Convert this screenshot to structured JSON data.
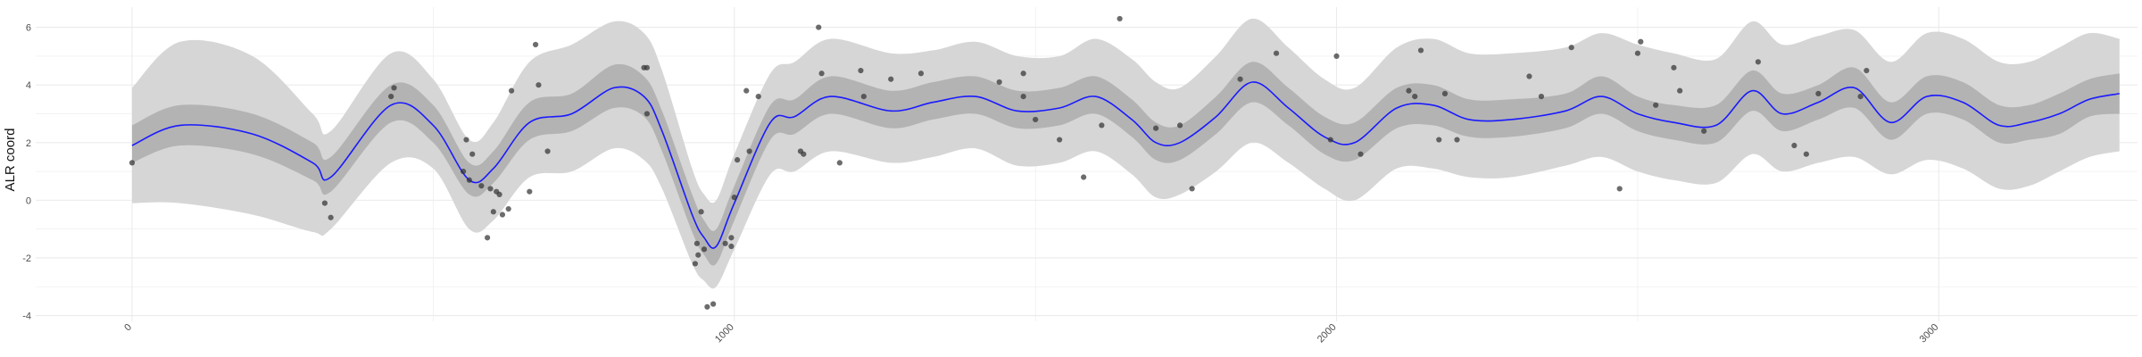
{
  "chart_data": {
    "type": "line",
    "title": "",
    "xlabel": "",
    "ylabel": "ALR coord",
    "xlim": [
      -160,
      3330
    ],
    "ylim": [
      -4.2,
      6.7
    ],
    "x_ticks": [
      0,
      1000,
      2000,
      3000
    ],
    "x_tick_labels": [
      "0",
      "1000",
      "2000",
      "3000"
    ],
    "y_ticks": [
      -4,
      -2,
      0,
      2,
      4,
      6
    ],
    "y_tick_labels": [
      "-4",
      "-2",
      "0",
      "2",
      "4",
      "6"
    ],
    "grid": true,
    "colors": {
      "mean_line": "#1a1aff",
      "inner_band": "#b3b3b3",
      "outer_band": "#d6d6d6",
      "points": "#333333",
      "grid": "#ebebeb"
    },
    "series": [
      {
        "kind": "mean",
        "x": [
          0,
          80,
          200,
          300,
          330,
          430,
          500,
          560,
          600,
          660,
          730,
          800,
          850,
          880,
          930,
          950,
          970,
          1000,
          1060,
          1100,
          1160,
          1260,
          1330,
          1400,
          1470,
          1540,
          1600,
          1660,
          1700,
          1740,
          1800,
          1860,
          1920,
          1980,
          2030,
          2100,
          2160,
          2220,
          2290,
          2380,
          2440,
          2500,
          2560,
          2630,
          2690,
          2740,
          2800,
          2860,
          2920,
          2980,
          3040,
          3100,
          3150,
          3200,
          3250,
          3300
        ],
        "y": [
          1.9,
          2.6,
          2.3,
          1.3,
          0.8,
          3.3,
          2.6,
          0.7,
          1.1,
          2.7,
          3.0,
          3.9,
          3.6,
          2.4,
          -0.5,
          -1.3,
          -1.6,
          -0.1,
          2.7,
          2.9,
          3.6,
          3.1,
          3.4,
          3.6,
          3.1,
          3.2,
          3.6,
          2.8,
          2.0,
          2.0,
          2.9,
          4.1,
          3.2,
          2.2,
          2.0,
          3.2,
          3.3,
          2.8,
          2.8,
          3.1,
          3.6,
          3.0,
          2.7,
          2.6,
          3.8,
          3.0,
          3.4,
          3.9,
          2.7,
          3.6,
          3.4,
          2.6,
          2.7,
          3.0,
          3.5,
          3.7
        ]
      },
      {
        "kind": "inner-band",
        "x": [
          0,
          80,
          200,
          300,
          330,
          430,
          500,
          560,
          600,
          660,
          730,
          800,
          850,
          880,
          930,
          950,
          970,
          1000,
          1060,
          1100,
          1160,
          1260,
          1330,
          1400,
          1470,
          1540,
          1600,
          1660,
          1700,
          1740,
          1800,
          1860,
          1920,
          1980,
          2030,
          2100,
          2160,
          2220,
          2290,
          2380,
          2440,
          2500,
          2560,
          2630,
          2690,
          2740,
          2800,
          2860,
          2920,
          2980,
          3040,
          3100,
          3150,
          3200,
          3250,
          3300
        ],
        "lower": [
          1.3,
          1.9,
          1.6,
          0.7,
          0.3,
          2.7,
          2.0,
          0.2,
          0.6,
          2.1,
          2.4,
          3.2,
          2.9,
          1.7,
          -1.1,
          -1.9,
          -2.2,
          -0.7,
          2.1,
          2.3,
          3.0,
          2.5,
          2.8,
          3.0,
          2.5,
          2.6,
          3.0,
          2.2,
          1.4,
          1.4,
          2.3,
          3.4,
          2.6,
          1.6,
          1.4,
          2.5,
          2.6,
          2.2,
          2.2,
          2.5,
          3.0,
          2.4,
          2.1,
          2.0,
          3.1,
          2.4,
          2.8,
          3.2,
          2.1,
          3.0,
          2.8,
          2.0,
          2.1,
          2.3,
          2.9,
          3.0
        ],
        "upper": [
          2.6,
          3.3,
          3.0,
          2.0,
          1.5,
          4.0,
          3.3,
          1.3,
          1.7,
          3.4,
          3.7,
          4.7,
          4.3,
          3.1,
          0.2,
          -0.7,
          -1.0,
          0.5,
          3.3,
          3.5,
          4.3,
          3.8,
          4.1,
          4.3,
          3.8,
          3.9,
          4.3,
          3.5,
          2.7,
          2.6,
          3.6,
          4.8,
          3.9,
          2.9,
          2.7,
          3.9,
          4.0,
          3.5,
          3.5,
          3.7,
          4.3,
          3.6,
          3.3,
          3.3,
          4.5,
          3.7,
          4.0,
          4.6,
          3.4,
          4.3,
          4.1,
          3.3,
          3.3,
          3.7,
          4.2,
          4.4
        ]
      },
      {
        "kind": "outer-band",
        "x": [
          0,
          80,
          200,
          300,
          330,
          430,
          500,
          560,
          600,
          660,
          730,
          800,
          850,
          880,
          930,
          950,
          970,
          1000,
          1060,
          1100,
          1160,
          1260,
          1330,
          1400,
          1470,
          1540,
          1600,
          1660,
          1700,
          1740,
          1800,
          1860,
          1920,
          1980,
          2030,
          2100,
          2160,
          2220,
          2290,
          2380,
          2440,
          2500,
          2560,
          2630,
          2690,
          2740,
          2800,
          2860,
          2920,
          2980,
          3040,
          3100,
          3150,
          3200,
          3250,
          3300
        ],
        "lower": [
          -0.1,
          -0.1,
          -0.5,
          -1.1,
          -1.0,
          1.3,
          1.1,
          -1.0,
          -0.7,
          0.8,
          1.0,
          1.8,
          1.4,
          0.4,
          -2.2,
          -2.8,
          -3.0,
          -1.7,
          0.9,
          1.0,
          1.7,
          1.3,
          1.5,
          1.8,
          1.2,
          1.3,
          1.7,
          0.9,
          0.1,
          0.2,
          1.0,
          2.0,
          1.3,
          0.4,
          0.0,
          1.1,
          1.1,
          0.8,
          0.8,
          1.2,
          1.5,
          1.0,
          0.7,
          0.6,
          1.6,
          1.0,
          1.3,
          1.5,
          0.9,
          1.4,
          1.1,
          0.4,
          0.5,
          1.0,
          1.5,
          1.7
        ],
        "upper": [
          3.9,
          5.5,
          5.0,
          3.0,
          2.4,
          5.1,
          4.2,
          2.1,
          2.7,
          4.8,
          5.4,
          6.2,
          5.8,
          4.5,
          1.1,
          0.2,
          0.0,
          1.6,
          4.4,
          4.8,
          5.6,
          5.1,
          5.2,
          5.5,
          5.0,
          5.0,
          5.6,
          4.9,
          4.1,
          3.9,
          5.0,
          6.3,
          5.3,
          4.2,
          3.9,
          5.3,
          5.6,
          5.1,
          5.1,
          5.3,
          5.8,
          5.4,
          5.1,
          4.9,
          6.2,
          5.4,
          5.7,
          5.9,
          4.8,
          5.8,
          5.6,
          4.8,
          4.8,
          5.3,
          5.8,
          5.6
        ]
      },
      {
        "kind": "observations",
        "points": [
          [
            0,
            1.3
          ],
          [
            320,
            -0.1
          ],
          [
            330,
            -0.6
          ],
          [
            430,
            3.6
          ],
          [
            435,
            3.9
          ],
          [
            550,
            1.0
          ],
          [
            555,
            2.1
          ],
          [
            560,
            0.7
          ],
          [
            565,
            1.6
          ],
          [
            580,
            0.5
          ],
          [
            590,
            -1.3
          ],
          [
            595,
            0.4
          ],
          [
            600,
            -0.4
          ],
          [
            605,
            0.3
          ],
          [
            610,
            0.2
          ],
          [
            615,
            -0.5
          ],
          [
            625,
            -0.3
          ],
          [
            630,
            3.8
          ],
          [
            660,
            0.3
          ],
          [
            670,
            5.4
          ],
          [
            675,
            4.0
          ],
          [
            690,
            1.7
          ],
          [
            850,
            4.6
          ],
          [
            855,
            4.6
          ],
          [
            855,
            3.0
          ],
          [
            935,
            -2.2
          ],
          [
            938,
            -1.5
          ],
          [
            940,
            -1.9
          ],
          [
            945,
            -0.4
          ],
          [
            950,
            -1.7
          ],
          [
            955,
            -3.7
          ],
          [
            965,
            -3.6
          ],
          [
            985,
            -1.5
          ],
          [
            995,
            -1.6
          ],
          [
            995,
            -1.3
          ],
          [
            1000,
            0.1
          ],
          [
            1005,
            1.4
          ],
          [
            1020,
            3.8
          ],
          [
            1025,
            1.7
          ],
          [
            1040,
            3.6
          ],
          [
            1110,
            1.7
          ],
          [
            1115,
            1.6
          ],
          [
            1140,
            6.0
          ],
          [
            1145,
            4.4
          ],
          [
            1175,
            1.3
          ],
          [
            1210,
            4.5
          ],
          [
            1215,
            3.6
          ],
          [
            1260,
            4.2
          ],
          [
            1310,
            4.4
          ],
          [
            1440,
            4.1
          ],
          [
            1480,
            3.6
          ],
          [
            1480,
            4.4
          ],
          [
            1500,
            2.8
          ],
          [
            1540,
            2.1
          ],
          [
            1580,
            0.8
          ],
          [
            1610,
            2.6
          ],
          [
            1640,
            6.3
          ],
          [
            1700,
            2.5
          ],
          [
            1740,
            2.6
          ],
          [
            1760,
            0.4
          ],
          [
            1840,
            4.2
          ],
          [
            1900,
            5.1
          ],
          [
            1990,
            2.1
          ],
          [
            2000,
            5.0
          ],
          [
            2040,
            1.6
          ],
          [
            2120,
            3.8
          ],
          [
            2130,
            3.6
          ],
          [
            2140,
            5.2
          ],
          [
            2170,
            2.1
          ],
          [
            2180,
            3.7
          ],
          [
            2200,
            2.1
          ],
          [
            2320,
            4.3
          ],
          [
            2340,
            3.6
          ],
          [
            2390,
            5.3
          ],
          [
            2470,
            0.4
          ],
          [
            2500,
            5.1
          ],
          [
            2505,
            5.5
          ],
          [
            2530,
            3.3
          ],
          [
            2560,
            4.6
          ],
          [
            2570,
            3.8
          ],
          [
            2610,
            2.4
          ],
          [
            2700,
            4.8
          ],
          [
            2760,
            1.9
          ],
          [
            2780,
            1.6
          ],
          [
            2800,
            3.7
          ],
          [
            2870,
            3.6
          ],
          [
            2880,
            4.5
          ]
        ]
      }
    ]
  }
}
